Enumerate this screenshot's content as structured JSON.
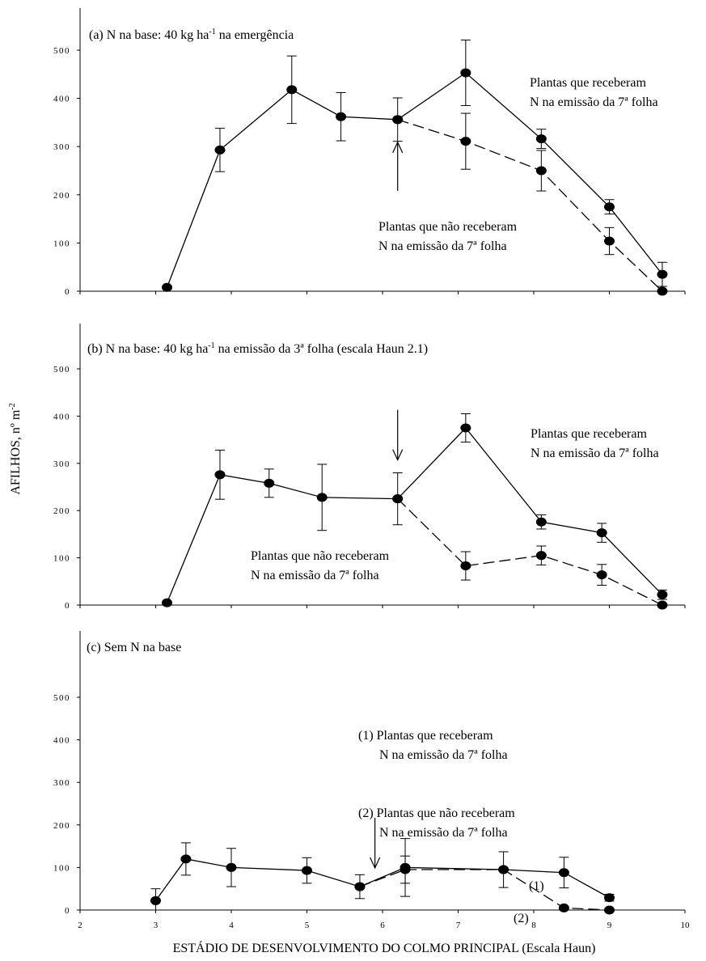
{
  "xlabel": "ESTÁDIO DE DESENVOLVIMENTO DO COLMO PRINCIPAL (Escala Haun)",
  "ylabel": "AFILHOS, nº m",
  "ylabel_sup": "-2",
  "panel_a": {
    "title": "(a) N na base: 40 kg ha",
    "title_sup": "-1",
    "title_end": " na emergência",
    "ann1": [
      "Plantas que receberam",
      "N na emissão da 7ª folha"
    ],
    "ann2": [
      "Plantas que não receberam",
      "N na emissão da 7ª folha"
    ]
  },
  "panel_b": {
    "title": "(b) N na base: 40 kg ha",
    "title_sup": "-1",
    "title_end": " na emissão da 3ª folha (escala Haun 2.1)",
    "ann1": [
      "Plantas que receberam",
      "N na emissão da 7ª folha"
    ],
    "ann2": [
      "Plantas que não receberam",
      "N na emissão da 7ª folha"
    ]
  },
  "panel_c": {
    "title": "(c) Sem N na base",
    "ann1": [
      "(1)   Plantas que receberam",
      "N na emissão da 7ª folha"
    ],
    "ann2": [
      "(2)   Plantas que não receberam",
      "N na emissão da 7ª folha"
    ],
    "label1": "(1)",
    "label2": "(2)"
  },
  "chart_data": [
    {
      "type": "line",
      "title": "(a) N na base: 40 kg ha-1 na emergência",
      "ylim": [
        0,
        550
      ],
      "yticks": [
        "0",
        "100",
        "200",
        "300",
        "400",
        "500"
      ],
      "arrow_x": 6.2,
      "arrow_direction": "up",
      "series": [
        {
          "name": "Plantas que receberam N na emissão da 7ª folha",
          "style": "solid",
          "x": [
            3.15,
            3.85,
            4.8,
            5.45,
            6.2,
            7.1,
            8.1,
            9.0,
            9.7
          ],
          "y": [
            8,
            293,
            418,
            362,
            356,
            453,
            316,
            175,
            35
          ],
          "err": [
            0,
            45,
            70,
            50,
            45,
            68,
            20,
            15,
            25
          ]
        },
        {
          "name": "Plantas que não receberam N na emissão da 7ª folha",
          "style": "dashed",
          "x": [
            6.2,
            7.1,
            8.1,
            9.0,
            9.7
          ],
          "y": [
            356,
            311,
            250,
            104,
            0
          ],
          "err": [
            0,
            58,
            42,
            28,
            0
          ]
        }
      ]
    },
    {
      "type": "line",
      "title": "(b) N na base: 40 kg ha-1 na emissão da 3ª folha (escala Haun 2.1)",
      "ylim": [
        0,
        550
      ],
      "yticks": [
        "0",
        "100",
        "200",
        "300",
        "400",
        "500"
      ],
      "arrow_x": 6.2,
      "arrow_direction": "down",
      "series": [
        {
          "name": "Plantas que receberam N na emissão da 7ª folha",
          "style": "solid",
          "x": [
            3.15,
            3.85,
            4.5,
            5.2,
            6.2,
            7.1,
            8.1,
            8.9,
            9.7
          ],
          "y": [
            5,
            276,
            258,
            228,
            225,
            375,
            176,
            153,
            22
          ],
          "err": [
            0,
            52,
            30,
            70,
            55,
            30,
            15,
            20,
            10
          ]
        },
        {
          "name": "Plantas que não receberam N na emissão da 7ª folha",
          "style": "dashed",
          "x": [
            6.2,
            7.1,
            8.1,
            8.9,
            9.7
          ],
          "y": [
            225,
            83,
            105,
            64,
            0
          ],
          "err": [
            0,
            30,
            20,
            22,
            0
          ]
        }
      ]
    },
    {
      "type": "line",
      "title": "(c) Sem N na base",
      "xlim": [
        2,
        10
      ],
      "xticks": [
        "2",
        "3",
        "4",
        "5",
        "6",
        "7",
        "8",
        "9",
        "10"
      ],
      "ylim": [
        0,
        580
      ],
      "yticks": [
        "0",
        "100",
        "200",
        "300",
        "400",
        "500"
      ],
      "arrow_x": 5.9,
      "arrow_direction": "down",
      "series": [
        {
          "name": "(1)",
          "style": "solid",
          "x": [
            3.0,
            3.4,
            4.0,
            5.0,
            5.7,
            6.3,
            7.6,
            8.4,
            9.0
          ],
          "y": [
            22,
            120,
            100,
            93,
            55,
            100,
            95,
            88,
            29
          ],
          "err": [
            28,
            38,
            45,
            30,
            28,
            68,
            42,
            36,
            8
          ]
        },
        {
          "name": "(2)",
          "style": "dashed",
          "x": [
            5.7,
            6.3,
            7.6,
            8.4,
            9.0
          ],
          "y": [
            55,
            95,
            95,
            5,
            0
          ],
          "err": [
            0,
            32,
            0,
            0,
            0
          ]
        }
      ]
    }
  ]
}
